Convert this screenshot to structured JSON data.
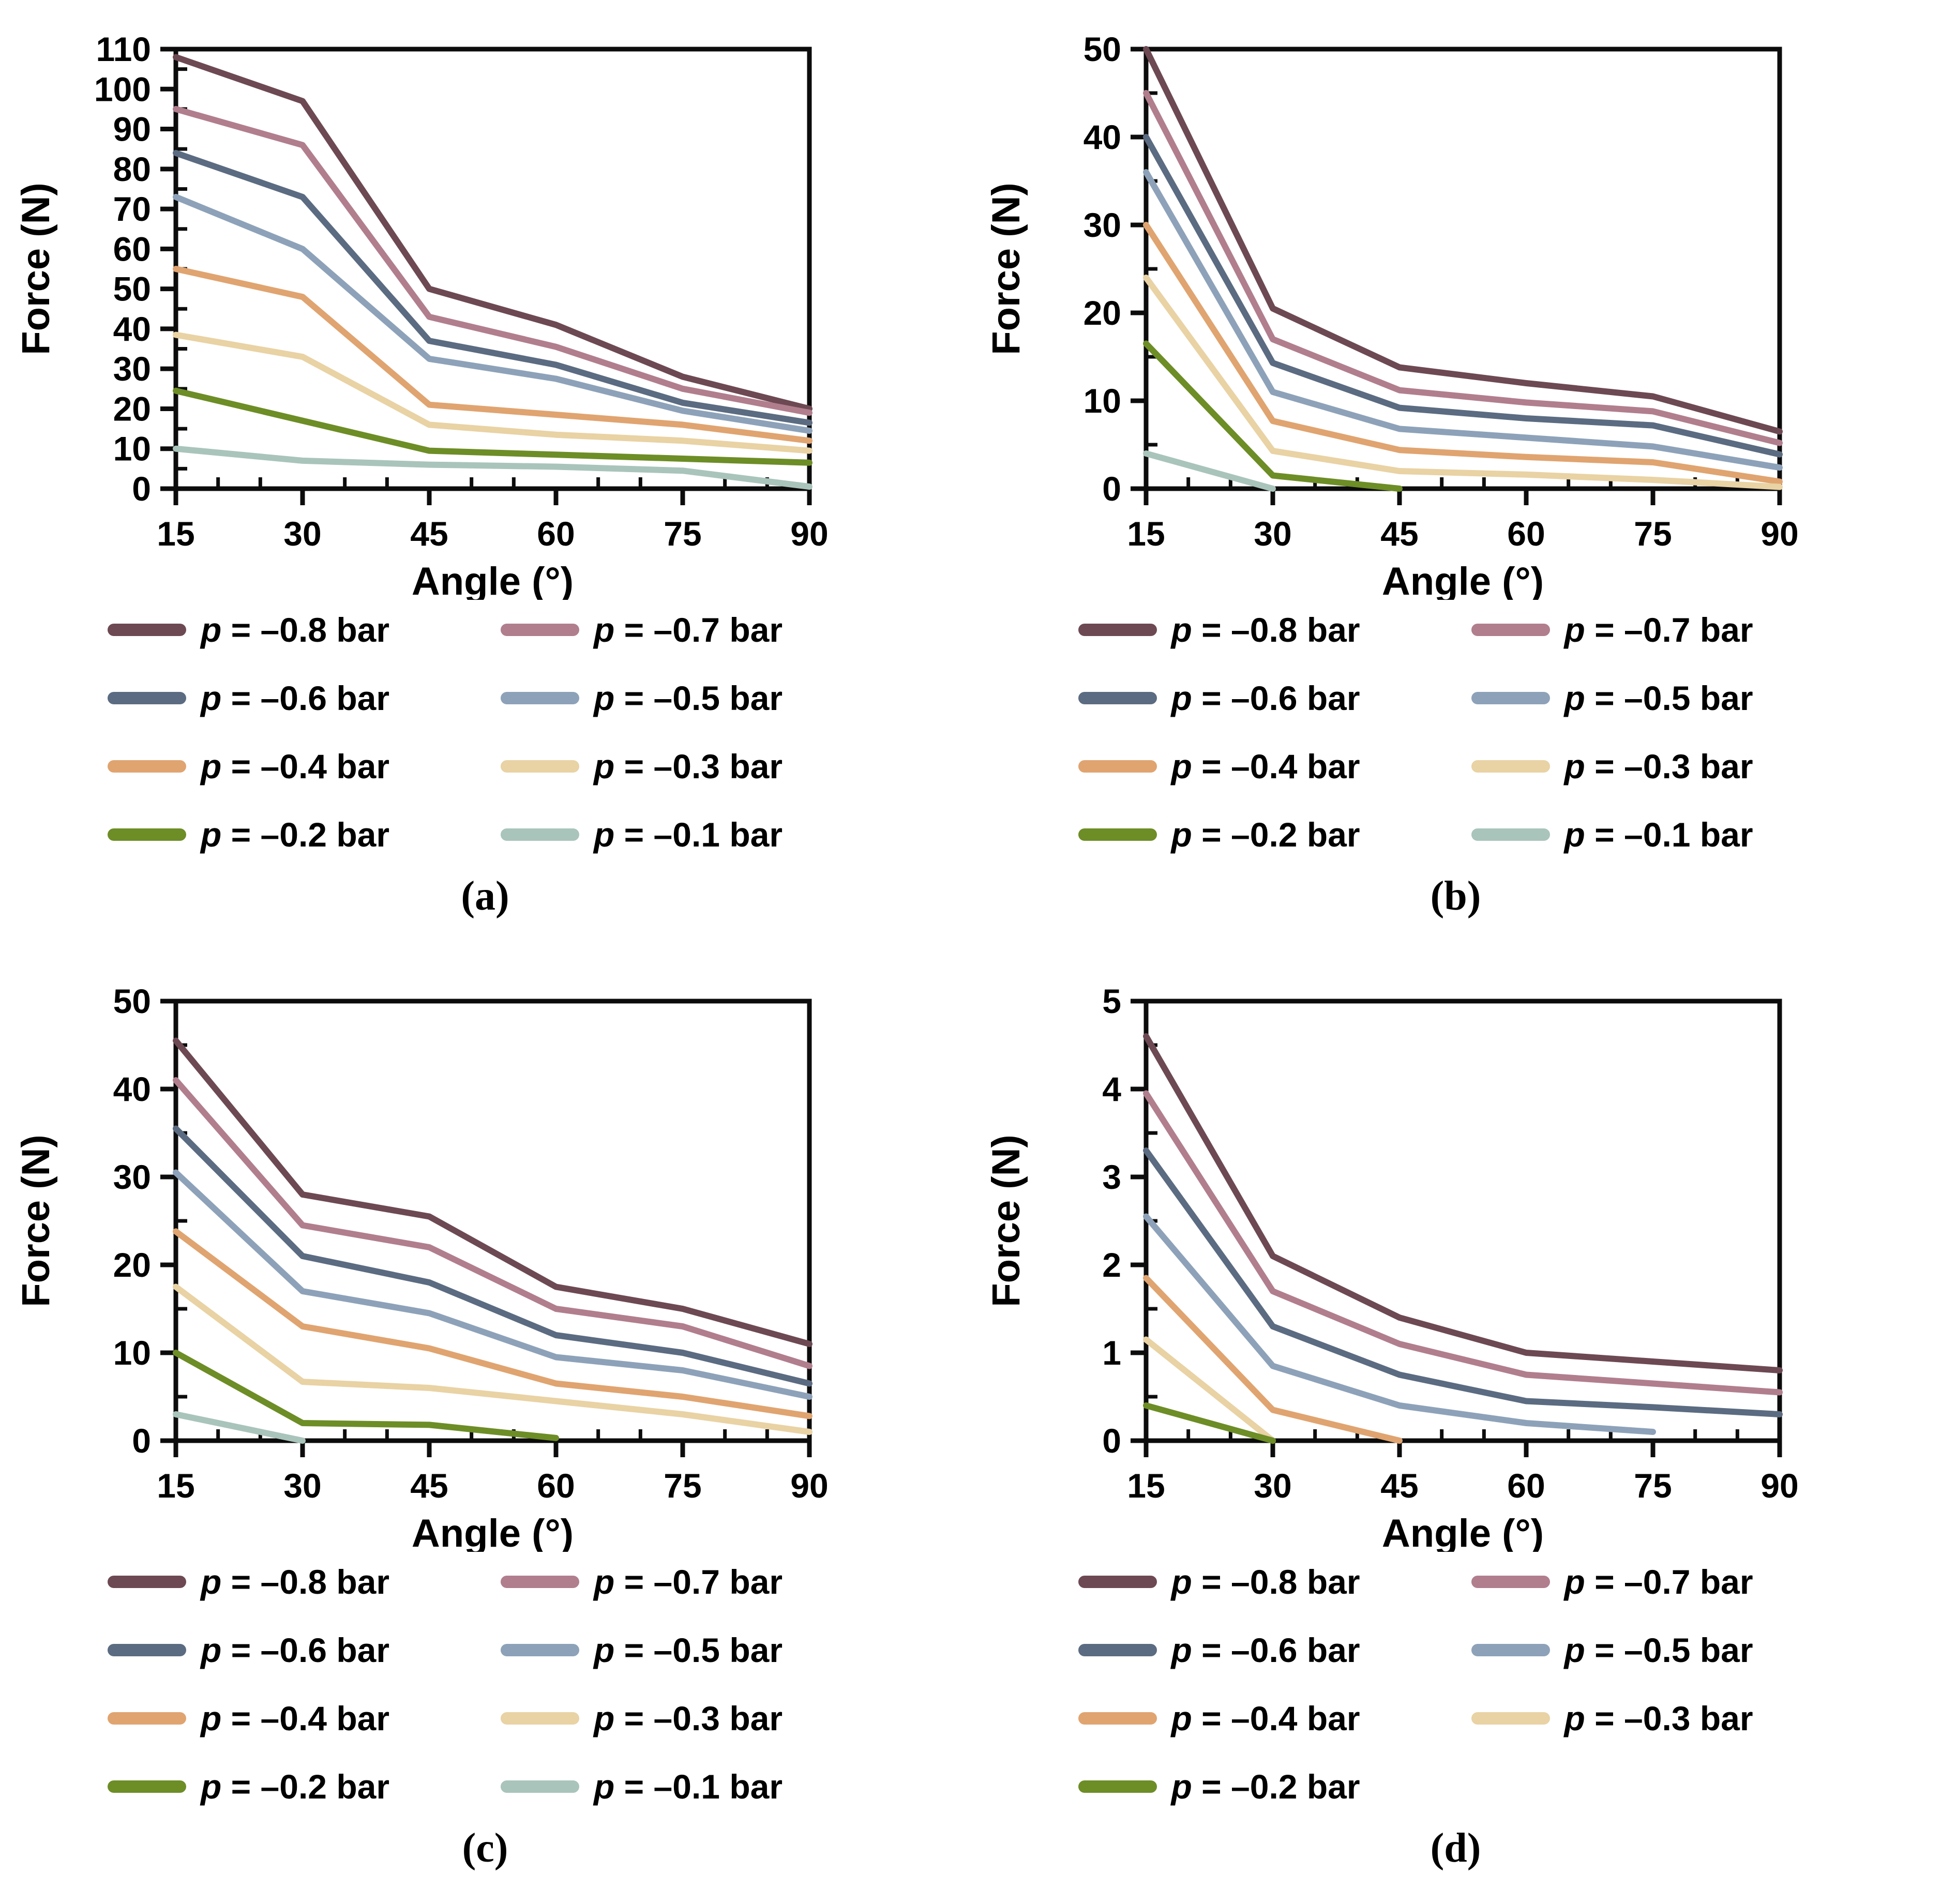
{
  "figure_title": "",
  "axis": {
    "xlabel": "Angle (°)",
    "ylabel": "Force (N)",
    "x_unit": "degrees",
    "y_unit": "N"
  },
  "chart_data": [
    {
      "id": "a",
      "type": "line",
      "caption": "(a)",
      "xlabel": "Angle (°)",
      "ylabel": "Force (N)",
      "x": [
        15,
        30,
        45,
        60,
        75,
        90
      ],
      "xticks": [
        15,
        30,
        45,
        60,
        75,
        90
      ],
      "xminor_step": 5,
      "ylim": [
        0,
        110
      ],
      "yticks": [
        0,
        10,
        20,
        30,
        40,
        50,
        60,
        70,
        80,
        90,
        100,
        110
      ],
      "yminor_step": 5,
      "legend_position": "bottom",
      "grid": false,
      "series": [
        {
          "name": "p = –0.8 bar",
          "color": "#6d4953",
          "values": [
            108,
            97,
            50,
            41,
            28,
            20
          ]
        },
        {
          "name": "p = –0.7 bar",
          "color": "#b17e8e",
          "values": [
            95,
            86,
            43,
            35.5,
            25,
            19
          ]
        },
        {
          "name": "p = –0.6 bar",
          "color": "#5b6b81",
          "values": [
            84,
            73,
            37,
            31,
            21.5,
            16.5
          ]
        },
        {
          "name": "p = –0.5 bar",
          "color": "#8da2b9",
          "values": [
            73,
            60,
            32.5,
            27.5,
            19.5,
            14.5
          ]
        },
        {
          "name": "p = –0.4 bar",
          "color": "#e0a470",
          "values": [
            55,
            48,
            21,
            18.5,
            16,
            12
          ]
        },
        {
          "name": "p = –0.3 bar",
          "color": "#e9d2a4",
          "values": [
            38.5,
            33,
            16,
            13.5,
            12,
            9.5
          ]
        },
        {
          "name": "p = –0.2 bar",
          "color": "#6d8d26",
          "values": [
            24.5,
            17,
            9.5,
            8.5,
            7.5,
            6.5
          ]
        },
        {
          "name": "p = –0.1 bar",
          "color": "#a9c4bb",
          "values": [
            10,
            7,
            6,
            5.5,
            4.5,
            0.5
          ]
        }
      ]
    },
    {
      "id": "b",
      "type": "line",
      "caption": "(b)",
      "xlabel": "Angle (°)",
      "ylabel": "Force (N)",
      "x": [
        15,
        30,
        45,
        60,
        75,
        90
      ],
      "xticks": [
        15,
        30,
        45,
        60,
        75,
        90
      ],
      "xminor_step": 5,
      "ylim": [
        0,
        50
      ],
      "yticks": [
        0,
        10,
        20,
        30,
        40,
        50
      ],
      "yminor_step": 5,
      "legend_position": "bottom",
      "grid": false,
      "series": [
        {
          "name": "p = –0.8 bar",
          "color": "#6d4953",
          "values": [
            50,
            20.5,
            13.8,
            12,
            10.5,
            6.5
          ]
        },
        {
          "name": "p = –0.7 bar",
          "color": "#b17e8e",
          "values": [
            45,
            17,
            11.2,
            9.8,
            8.8,
            5.2
          ]
        },
        {
          "name": "p = –0.6 bar",
          "color": "#5b6b81",
          "values": [
            40,
            14.3,
            9.2,
            8,
            7.2,
            3.9
          ]
        },
        {
          "name": "p = –0.5 bar",
          "color": "#8da2b9",
          "values": [
            36,
            11,
            6.8,
            5.8,
            4.8,
            2.4
          ]
        },
        {
          "name": "p = –0.4 bar",
          "color": "#e0a470",
          "values": [
            30,
            7.7,
            4.4,
            3.6,
            3,
            0.8
          ]
        },
        {
          "name": "p = –0.3 bar",
          "color": "#e9d2a4",
          "values": [
            24,
            4.3,
            2,
            1.6,
            1,
            0.2
          ]
        },
        {
          "name": "p = –0.2 bar",
          "color": "#6d8d26",
          "values": [
            16.5,
            1.5,
            0,
            null,
            null,
            null
          ]
        },
        {
          "name": "p = –0.1 bar",
          "color": "#a9c4bb",
          "values": [
            4,
            0,
            null,
            null,
            null,
            null
          ]
        }
      ]
    },
    {
      "id": "c",
      "type": "line",
      "caption": "(c)",
      "xlabel": "Angle (°)",
      "ylabel": "Force (N)",
      "x": [
        15,
        30,
        45,
        60,
        75,
        90
      ],
      "xticks": [
        15,
        30,
        45,
        60,
        75,
        90
      ],
      "xminor_step": 5,
      "ylim": [
        0,
        50
      ],
      "yticks": [
        0,
        10,
        20,
        30,
        40,
        50
      ],
      "yminor_step": 5,
      "legend_position": "bottom",
      "grid": false,
      "series": [
        {
          "name": "p = –0.8 bar",
          "color": "#6d4953",
          "values": [
            45.5,
            28,
            25.5,
            17.5,
            15,
            11
          ]
        },
        {
          "name": "p = –0.7 bar",
          "color": "#b17e8e",
          "values": [
            41,
            24.5,
            22,
            15,
            13,
            8.5
          ]
        },
        {
          "name": "p = –0.6 bar",
          "color": "#5b6b81",
          "values": [
            35.5,
            21,
            18,
            12,
            10,
            6.5
          ]
        },
        {
          "name": "p = –0.5 bar",
          "color": "#8da2b9",
          "values": [
            30.5,
            17,
            14.5,
            9.5,
            8,
            5
          ]
        },
        {
          "name": "p = –0.4 bar",
          "color": "#e0a470",
          "values": [
            23.8,
            13,
            10.5,
            6.5,
            5,
            2.8
          ]
        },
        {
          "name": "p = –0.3 bar",
          "color": "#e9d2a4",
          "values": [
            17.5,
            6.7,
            6,
            4.5,
            3,
            1
          ]
        },
        {
          "name": "p = –0.2 bar",
          "color": "#6d8d26",
          "values": [
            10,
            2,
            1.8,
            0.3,
            null,
            null
          ]
        },
        {
          "name": "p = –0.1 bar",
          "color": "#a9c4bb",
          "values": [
            3,
            0,
            null,
            null,
            null,
            null
          ]
        }
      ]
    },
    {
      "id": "d",
      "type": "line",
      "caption": "(d)",
      "xlabel": "Angle (°)",
      "ylabel": "Force (N)",
      "x": [
        15,
        30,
        45,
        60,
        75,
        90
      ],
      "xticks": [
        15,
        30,
        45,
        60,
        75,
        90
      ],
      "xminor_step": 5,
      "ylim": [
        0,
        5
      ],
      "yticks": [
        0,
        1,
        2,
        3,
        4,
        5
      ],
      "yminor_step": 0.5,
      "legend_position": "bottom",
      "grid": false,
      "series": [
        {
          "name": "p = –0.8 bar",
          "color": "#6d4953",
          "values": [
            4.6,
            2.1,
            1.4,
            1,
            0.9,
            0.8
          ]
        },
        {
          "name": "p = –0.7 bar",
          "color": "#b17e8e",
          "values": [
            3.95,
            1.7,
            1.1,
            0.75,
            0.65,
            0.55
          ]
        },
        {
          "name": "p = –0.6 bar",
          "color": "#5b6b81",
          "values": [
            3.3,
            1.3,
            0.75,
            0.45,
            0.38,
            0.3
          ]
        },
        {
          "name": "p = –0.5 bar",
          "color": "#8da2b9",
          "values": [
            2.55,
            0.85,
            0.4,
            0.2,
            0.1,
            null
          ]
        },
        {
          "name": "p = –0.4 bar",
          "color": "#e0a470",
          "values": [
            1.85,
            0.35,
            0,
            null,
            null,
            null
          ]
        },
        {
          "name": "p = –0.3 bar",
          "color": "#e9d2a4",
          "values": [
            1.15,
            0,
            null,
            null,
            null,
            null
          ]
        },
        {
          "name": "p = –0.2 bar",
          "color": "#6d8d26",
          "values": [
            0.4,
            0,
            null,
            null,
            null,
            null
          ]
        }
      ]
    }
  ]
}
